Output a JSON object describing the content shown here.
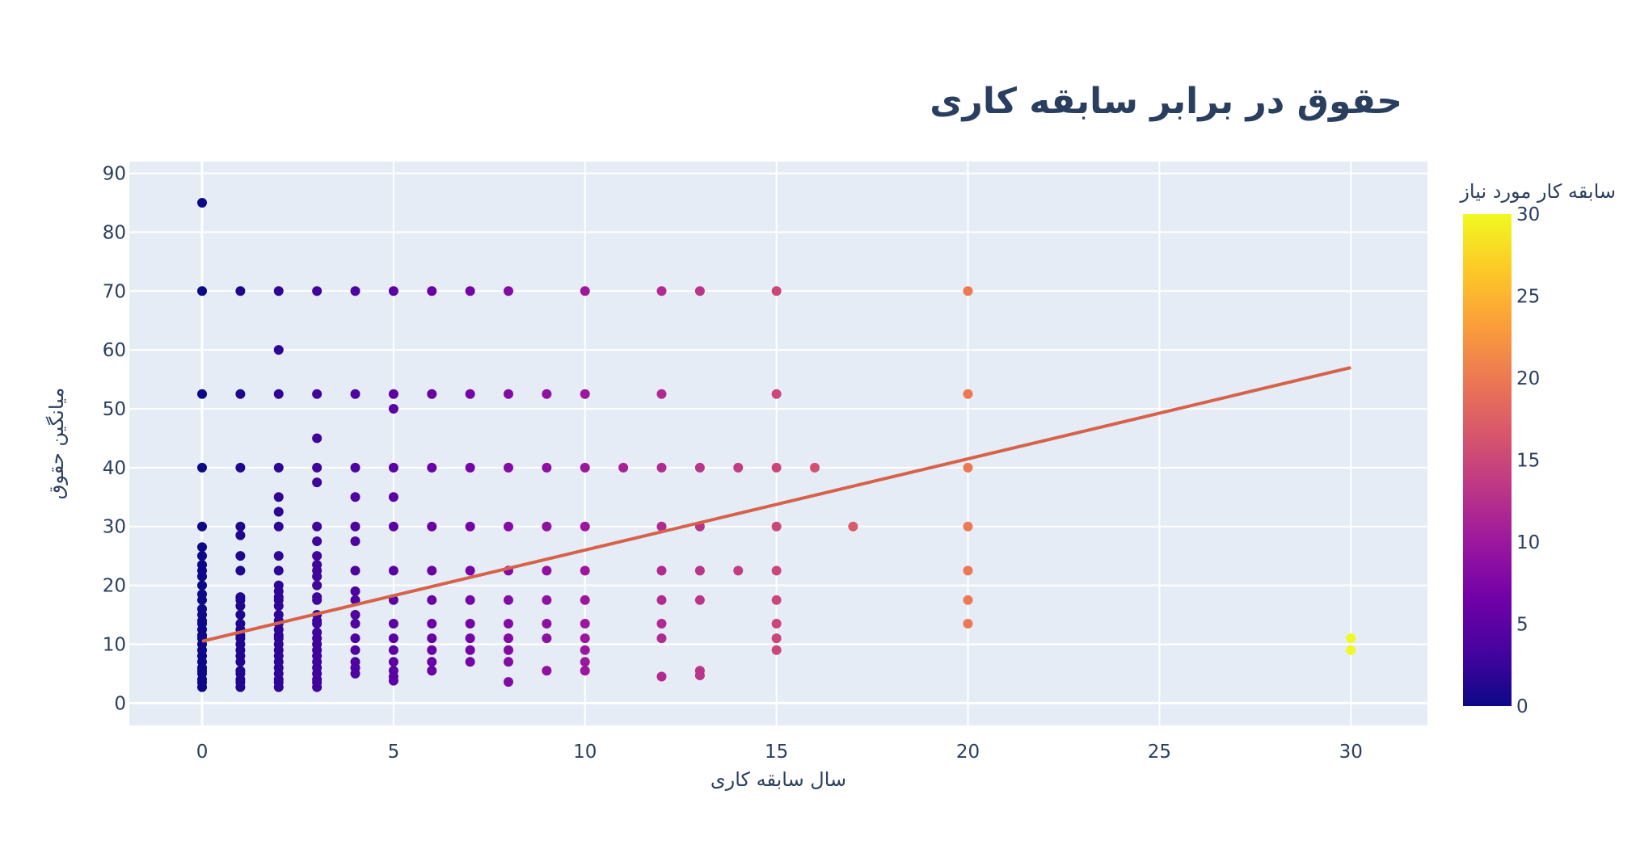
{
  "chart_data": {
    "type": "scatter",
    "title": "حقوق در برابر سابقه کاری",
    "xlabel": "سال سابقه کاری",
    "ylabel": "میانگین حقوق",
    "xlim": [
      -1.9,
      32
    ],
    "ylim": [
      -3.8,
      92
    ],
    "xticks": [
      0,
      5,
      10,
      15,
      20,
      25,
      30
    ],
    "yticks": [
      0,
      10,
      20,
      30,
      40,
      50,
      60,
      70,
      80,
      90
    ],
    "grid": true,
    "colorscale": "plasma",
    "colorbar": {
      "title": "سابقه کار مورد نیاز",
      "range": [
        0,
        30
      ],
      "ticks": [
        0,
        5,
        10,
        15,
        20,
        25,
        30
      ],
      "colors": [
        "#0d0887",
        "#46039f",
        "#7201a8",
        "#9c179e",
        "#bd3786",
        "#d8576b",
        "#ed7953",
        "#fb9f3a",
        "#fdca26",
        "#f0f921"
      ]
    },
    "series": [
      {
        "mode": "markers",
        "points": [
          [
            0,
            85
          ],
          [
            0,
            70
          ],
          [
            0,
            52.5
          ],
          [
            0,
            40
          ],
          [
            0,
            30
          ],
          [
            0,
            26.5
          ],
          [
            0,
            25
          ],
          [
            0,
            23.5
          ],
          [
            0,
            22.5
          ],
          [
            0,
            21.5
          ],
          [
            0,
            20
          ],
          [
            0,
            18.5
          ],
          [
            0,
            17.5
          ],
          [
            0,
            16
          ],
          [
            0,
            15
          ],
          [
            0,
            14
          ],
          [
            0,
            13.5
          ],
          [
            0,
            12.5
          ],
          [
            0,
            11.5
          ],
          [
            0,
            11
          ],
          [
            0,
            10
          ],
          [
            0,
            9
          ],
          [
            0,
            8
          ],
          [
            0,
            7
          ],
          [
            0,
            6
          ],
          [
            0,
            5.5
          ],
          [
            0,
            5
          ],
          [
            0,
            4
          ],
          [
            0,
            3.5
          ],
          [
            0,
            2.7
          ],
          [
            1,
            70
          ],
          [
            1,
            52.5
          ],
          [
            1,
            40
          ],
          [
            1,
            30
          ],
          [
            1,
            28.5
          ],
          [
            1,
            25
          ],
          [
            1,
            22.5
          ],
          [
            1,
            18
          ],
          [
            1,
            17.5
          ],
          [
            1,
            16.5
          ],
          [
            1,
            15
          ],
          [
            1,
            13.5
          ],
          [
            1,
            12.5
          ],
          [
            1,
            11.5
          ],
          [
            1,
            11
          ],
          [
            1,
            10
          ],
          [
            1,
            9
          ],
          [
            1,
            8
          ],
          [
            1,
            7
          ],
          [
            1,
            5.5
          ],
          [
            1,
            5
          ],
          [
            1,
            4
          ],
          [
            1,
            3.5
          ],
          [
            1,
            2.7
          ],
          [
            2,
            70
          ],
          [
            2,
            60
          ],
          [
            2,
            52.5
          ],
          [
            2,
            40
          ],
          [
            2,
            35
          ],
          [
            2,
            32.5
          ],
          [
            2,
            30
          ],
          [
            2,
            25
          ],
          [
            2,
            22.5
          ],
          [
            2,
            20
          ],
          [
            2,
            19
          ],
          [
            2,
            18
          ],
          [
            2,
            17.5
          ],
          [
            2,
            16.5
          ],
          [
            2,
            15
          ],
          [
            2,
            14
          ],
          [
            2,
            13.5
          ],
          [
            2,
            12.5
          ],
          [
            2,
            11.5
          ],
          [
            2,
            11
          ],
          [
            2,
            10
          ],
          [
            2,
            9
          ],
          [
            2,
            8
          ],
          [
            2,
            7
          ],
          [
            2,
            6
          ],
          [
            2,
            5
          ],
          [
            2,
            4
          ],
          [
            2,
            3.5
          ],
          [
            2,
            2.7
          ],
          [
            3,
            70
          ],
          [
            3,
            52.5
          ],
          [
            3,
            45
          ],
          [
            3,
            40
          ],
          [
            3,
            37.5
          ],
          [
            3,
            30
          ],
          [
            3,
            27.5
          ],
          [
            3,
            25
          ],
          [
            3,
            23.5
          ],
          [
            3,
            22.5
          ],
          [
            3,
            21.5
          ],
          [
            3,
            20
          ],
          [
            3,
            18
          ],
          [
            3,
            17.5
          ],
          [
            3,
            15
          ],
          [
            3,
            14
          ],
          [
            3,
            13.5
          ],
          [
            3,
            12
          ],
          [
            3,
            11
          ],
          [
            3,
            10
          ],
          [
            3,
            9
          ],
          [
            3,
            8
          ],
          [
            3,
            7
          ],
          [
            3,
            6
          ],
          [
            3,
            5
          ],
          [
            3,
            4
          ],
          [
            3,
            3.5
          ],
          [
            3,
            2.7
          ],
          [
            4,
            70
          ],
          [
            4,
            52.5
          ],
          [
            4,
            40
          ],
          [
            4,
            35
          ],
          [
            4,
            30
          ],
          [
            4,
            27.5
          ],
          [
            4,
            22.5
          ],
          [
            4,
            19
          ],
          [
            4,
            17.5
          ],
          [
            4,
            15
          ],
          [
            4,
            13.5
          ],
          [
            4,
            11
          ],
          [
            4,
            9
          ],
          [
            4,
            7
          ],
          [
            4,
            6
          ],
          [
            4,
            5
          ],
          [
            5,
            70
          ],
          [
            5,
            52.5
          ],
          [
            5,
            50
          ],
          [
            5,
            40
          ],
          [
            5,
            35
          ],
          [
            5,
            30
          ],
          [
            5,
            22.5
          ],
          [
            5,
            17.5
          ],
          [
            5,
            13.5
          ],
          [
            5,
            11
          ],
          [
            5,
            9
          ],
          [
            5,
            7
          ],
          [
            5,
            5.5
          ],
          [
            5,
            4.5
          ],
          [
            5,
            3.8
          ],
          [
            6,
            70
          ],
          [
            6,
            52.5
          ],
          [
            6,
            40
          ],
          [
            6,
            30
          ],
          [
            6,
            22.5
          ],
          [
            6,
            17.5
          ],
          [
            6,
            13.5
          ],
          [
            6,
            11
          ],
          [
            6,
            9
          ],
          [
            6,
            7
          ],
          [
            6,
            5.5
          ],
          [
            7,
            70
          ],
          [
            7,
            52.5
          ],
          [
            7,
            40
          ],
          [
            7,
            30
          ],
          [
            7,
            22.5
          ],
          [
            7,
            17.5
          ],
          [
            7,
            13.5
          ],
          [
            7,
            11
          ],
          [
            7,
            9
          ],
          [
            7,
            7
          ],
          [
            8,
            70
          ],
          [
            8,
            52.5
          ],
          [
            8,
            40
          ],
          [
            8,
            30
          ],
          [
            8,
            22.5
          ],
          [
            8,
            17.5
          ],
          [
            8,
            13.5
          ],
          [
            8,
            11
          ],
          [
            8,
            9
          ],
          [
            8,
            7
          ],
          [
            8,
            3.6
          ],
          [
            9,
            52.5
          ],
          [
            9,
            40
          ],
          [
            9,
            30
          ],
          [
            9,
            22.5
          ],
          [
            9,
            17.5
          ],
          [
            9,
            13.5
          ],
          [
            9,
            11
          ],
          [
            9,
            5.5
          ],
          [
            10,
            70
          ],
          [
            10,
            52.5
          ],
          [
            10,
            40
          ],
          [
            10,
            30
          ],
          [
            10,
            22.5
          ],
          [
            10,
            17.5
          ],
          [
            10,
            13.5
          ],
          [
            10,
            11
          ],
          [
            10,
            9
          ],
          [
            10,
            7
          ],
          [
            10,
            5.5
          ],
          [
            11,
            40
          ],
          [
            12,
            70
          ],
          [
            12,
            52.5
          ],
          [
            12,
            40
          ],
          [
            12,
            30
          ],
          [
            12,
            22.5
          ],
          [
            12,
            17.5
          ],
          [
            12,
            13.5
          ],
          [
            12,
            11
          ],
          [
            12,
            4.5
          ],
          [
            13,
            70
          ],
          [
            13,
            40
          ],
          [
            13,
            30
          ],
          [
            13,
            22.5
          ],
          [
            13,
            17.5
          ],
          [
            13,
            5.5
          ],
          [
            13,
            4.7
          ],
          [
            14,
            40
          ],
          [
            14,
            22.5
          ],
          [
            15,
            70
          ],
          [
            15,
            52.5
          ],
          [
            15,
            40
          ],
          [
            15,
            30
          ],
          [
            15,
            22.5
          ],
          [
            15,
            17.5
          ],
          [
            15,
            13.5
          ],
          [
            15,
            11
          ],
          [
            15,
            9
          ],
          [
            16,
            40
          ],
          [
            17,
            30
          ],
          [
            20,
            70
          ],
          [
            20,
            52.5
          ],
          [
            20,
            40
          ],
          [
            20,
            30
          ],
          [
            20,
            22.5
          ],
          [
            20,
            17.5
          ],
          [
            20,
            13.5
          ],
          [
            30,
            11
          ],
          [
            30,
            9
          ]
        ]
      },
      {
        "mode": "line",
        "color": "#d6624a",
        "points": [
          [
            0,
            10.5
          ],
          [
            30,
            57
          ]
        ]
      }
    ]
  }
}
